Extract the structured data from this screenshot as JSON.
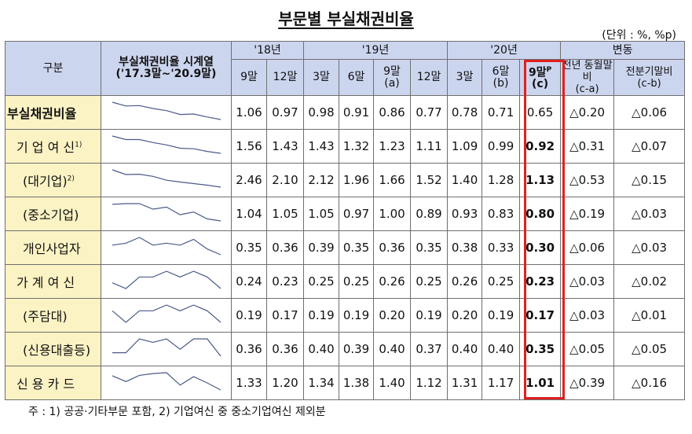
{
  "title": "부문별 부실채권비율",
  "unit": "(단위 : %, %p)",
  "header": {
    "category": "구분",
    "series_title": "부실채권비율 시계열",
    "series_range": "('17.3말~'20.9말)",
    "y18": "'18년",
    "y19": "'19년",
    "y20": "'20년",
    "change": "변동",
    "c18_9": "9말",
    "c18_12": "12말",
    "c19_3": "3말",
    "c19_6": "6말",
    "c19_9": "9말",
    "c19_9_sub": "(a)",
    "c19_12": "12말",
    "c20_3": "3말",
    "c20_6": "6말",
    "c20_6_sub": "(b)",
    "c20_9": "9말",
    "c20_9_sup": "P",
    "c20_9_sub": "(c)",
    "yoy": "전년 동월말비",
    "yoy_sub": "(c-a)",
    "qoq": "전분기말비",
    "qoq_sub": "(c-b)"
  },
  "rows": [
    {
      "label": "부실채권비율",
      "values": [
        "1.06",
        "0.97",
        "0.98",
        "0.91",
        "0.86",
        "0.77",
        "0.78",
        "0.71",
        "0.65",
        "△0.20",
        "△0.06"
      ]
    },
    {
      "label": "기 업 여 신",
      "sup": "1)",
      "values": [
        "1.56",
        "1.43",
        "1.43",
        "1.32",
        "1.23",
        "1.11",
        "1.09",
        "0.99",
        "0.92",
        "△0.31",
        "△0.07"
      ]
    },
    {
      "label": "(대기업)",
      "sup": "2)",
      "values": [
        "2.46",
        "2.10",
        "2.12",
        "1.96",
        "1.66",
        "1.52",
        "1.40",
        "1.28",
        "1.13",
        "△0.53",
        "△0.15"
      ]
    },
    {
      "label": "(중소기업)",
      "values": [
        "1.04",
        "1.05",
        "1.05",
        "0.97",
        "1.00",
        "0.89",
        "0.93",
        "0.83",
        "0.80",
        "△0.19",
        "△0.03"
      ]
    },
    {
      "label": "개인사업자",
      "values": [
        "0.35",
        "0.36",
        "0.39",
        "0.35",
        "0.36",
        "0.35",
        "0.38",
        "0.33",
        "0.30",
        "△0.06",
        "△0.03"
      ]
    },
    {
      "label": "가 계 여 신",
      "values": [
        "0.24",
        "0.23",
        "0.25",
        "0.25",
        "0.26",
        "0.25",
        "0.26",
        "0.25",
        "0.23",
        "△0.03",
        "△0.02"
      ]
    },
    {
      "label": "(주담대)",
      "values": [
        "0.19",
        "0.17",
        "0.19",
        "0.19",
        "0.20",
        "0.19",
        "0.20",
        "0.19",
        "0.17",
        "△0.03",
        "△0.01"
      ]
    },
    {
      "label": "(신용대출등)",
      "values": [
        "0.36",
        "0.36",
        "0.40",
        "0.39",
        "0.40",
        "0.37",
        "0.40",
        "0.40",
        "0.35",
        "△0.05",
        "△0.05"
      ]
    },
    {
      "label": "신 용 카 드",
      "values": [
        "1.33",
        "1.20",
        "1.34",
        "1.38",
        "1.40",
        "1.12",
        "1.31",
        "1.17",
        "1.01",
        "△0.39",
        "△0.16"
      ]
    }
  ],
  "note": "주 : 1) 공공·기타부문 포함, 2) 기업여신 중 중소기업여신 제외분",
  "colors": {
    "header_bg": "#ccd5ee",
    "label_bg": "#fcf3c4",
    "highlight": "#e02020",
    "spark": "#4a5a8a"
  }
}
